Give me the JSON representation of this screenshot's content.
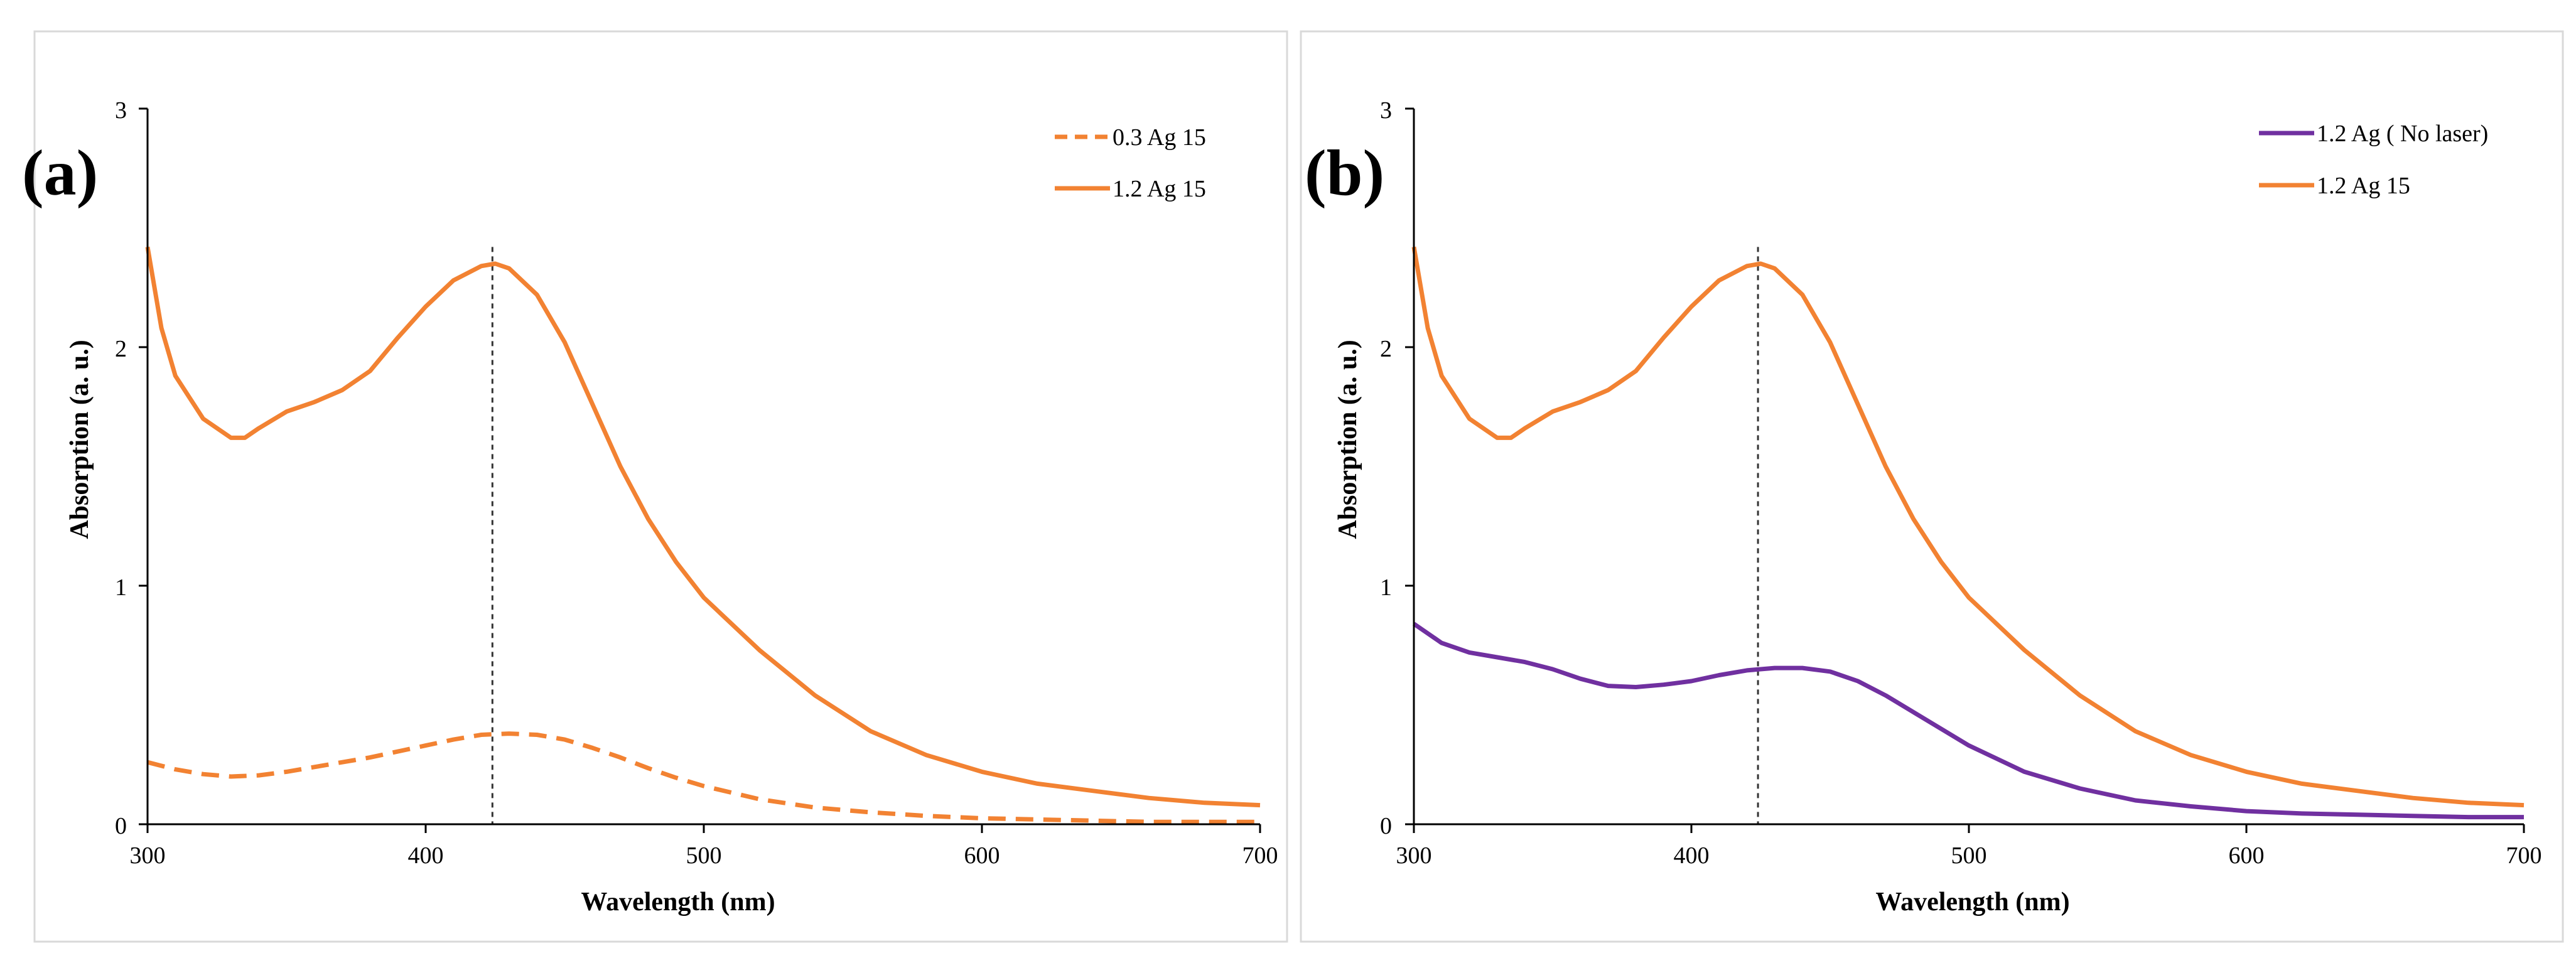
{
  "chart_data": [
    {
      "type": "line",
      "panel_label": "(a)",
      "xlabel": "Wavelength (nm)",
      "ylabel": "Absorption (a. u.)",
      "xlim": [
        300,
        700
      ],
      "ylim": [
        0,
        3
      ],
      "x_ticks": [
        "300",
        "400",
        "500",
        "600",
        "700"
      ],
      "y_ticks": [
        "0",
        "1",
        "2",
        "3"
      ],
      "legend_position": "top-right",
      "reference_line_x": 424,
      "series": [
        {
          "name": "0.3 Ag 15",
          "color": "#F28232",
          "style": "dashed",
          "x": [
            300,
            310,
            320,
            330,
            340,
            350,
            360,
            370,
            380,
            390,
            400,
            410,
            420,
            430,
            440,
            450,
            460,
            470,
            480,
            490,
            500,
            520,
            540,
            560,
            580,
            600,
            620,
            640,
            660,
            680,
            700
          ],
          "y": [
            0.26,
            0.23,
            0.21,
            0.2,
            0.205,
            0.22,
            0.24,
            0.26,
            0.28,
            0.305,
            0.33,
            0.355,
            0.375,
            0.38,
            0.375,
            0.355,
            0.32,
            0.28,
            0.235,
            0.195,
            0.16,
            0.105,
            0.07,
            0.05,
            0.035,
            0.025,
            0.02,
            0.015,
            0.01,
            0.01,
            0.01
          ]
        },
        {
          "name": "1.2 Ag 15",
          "color": "#F28232",
          "style": "solid",
          "x": [
            300,
            305,
            310,
            320,
            330,
            335,
            340,
            350,
            360,
            370,
            380,
            390,
            400,
            410,
            420,
            425,
            430,
            440,
            450,
            460,
            470,
            480,
            490,
            500,
            510,
            520,
            540,
            560,
            580,
            600,
            620,
            640,
            660,
            680,
            700
          ],
          "y": [
            2.42,
            2.08,
            1.88,
            1.7,
            1.62,
            1.62,
            1.66,
            1.73,
            1.77,
            1.82,
            1.9,
            2.04,
            2.17,
            2.28,
            2.34,
            2.35,
            2.33,
            2.22,
            2.02,
            1.76,
            1.5,
            1.28,
            1.1,
            0.95,
            0.84,
            0.73,
            0.54,
            0.39,
            0.29,
            0.22,
            0.17,
            0.14,
            0.11,
            0.09,
            0.08
          ]
        }
      ]
    },
    {
      "type": "line",
      "panel_label": "(b)",
      "xlabel": "Wavelength (nm)",
      "ylabel": "Absorption (a. u.)",
      "xlim": [
        300,
        700
      ],
      "ylim": [
        0,
        3
      ],
      "x_ticks": [
        "300",
        "400",
        "500",
        "600",
        "700"
      ],
      "y_ticks": [
        "0",
        "1",
        "2",
        "3"
      ],
      "legend_position": "top-right",
      "reference_line_x": 424,
      "series": [
        {
          "name": "1.2 Ag ( No laser)",
          "color": "#7030A0",
          "style": "solid",
          "x": [
            300,
            310,
            320,
            330,
            340,
            350,
            360,
            370,
            380,
            390,
            400,
            410,
            420,
            430,
            440,
            450,
            460,
            470,
            480,
            490,
            500,
            520,
            540,
            560,
            580,
            600,
            620,
            640,
            660,
            680,
            700
          ],
          "y": [
            0.84,
            0.76,
            0.72,
            0.7,
            0.68,
            0.65,
            0.61,
            0.58,
            0.575,
            0.585,
            0.6,
            0.625,
            0.645,
            0.655,
            0.655,
            0.64,
            0.6,
            0.54,
            0.47,
            0.4,
            0.33,
            0.22,
            0.15,
            0.1,
            0.075,
            0.055,
            0.045,
            0.04,
            0.035,
            0.03,
            0.03
          ]
        },
        {
          "name": "1.2 Ag 15",
          "color": "#F28232",
          "style": "solid",
          "x": [
            300,
            305,
            310,
            320,
            330,
            335,
            340,
            350,
            360,
            370,
            380,
            390,
            400,
            410,
            420,
            425,
            430,
            440,
            450,
            460,
            470,
            480,
            490,
            500,
            510,
            520,
            540,
            560,
            580,
            600,
            620,
            640,
            660,
            680,
            700
          ],
          "y": [
            2.42,
            2.08,
            1.88,
            1.7,
            1.62,
            1.62,
            1.66,
            1.73,
            1.77,
            1.82,
            1.9,
            2.04,
            2.17,
            2.28,
            2.34,
            2.35,
            2.33,
            2.22,
            2.02,
            1.76,
            1.5,
            1.28,
            1.1,
            0.95,
            0.84,
            0.73,
            0.54,
            0.39,
            0.29,
            0.22,
            0.17,
            0.14,
            0.11,
            0.09,
            0.08
          ]
        }
      ]
    }
  ]
}
